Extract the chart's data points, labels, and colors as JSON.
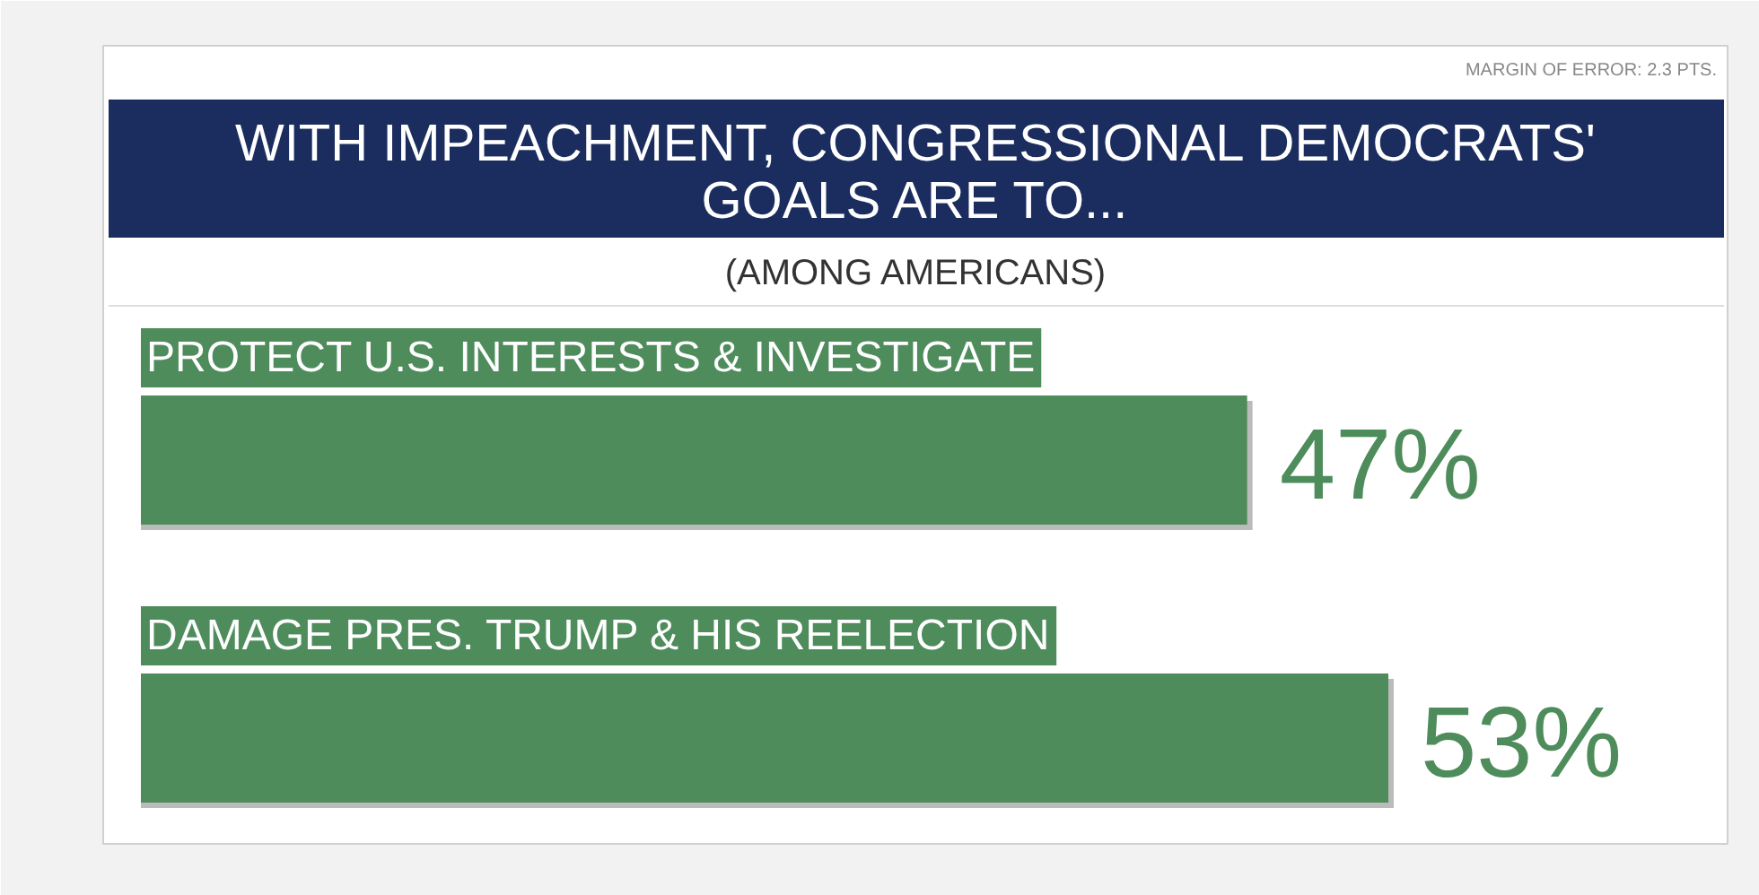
{
  "chart_data": {
    "type": "bar",
    "orientation": "horizontal",
    "title": "WITH IMPEACHMENT, CONGRESSIONAL DEMOCRATS' GOALS ARE TO...",
    "subtitle": "(AMONG AMERICANS)",
    "annotations": [
      "MARGIN OF ERROR: 2.3 PTS."
    ],
    "categories": [
      "PROTECT U.S. INTERESTS & INVESTIGATE",
      "DAMAGE PRES. TRUMP & HIS REELECTION"
    ],
    "values": [
      47,
      53
    ],
    "value_labels": [
      "47%",
      "53%"
    ],
    "color": "#4e8c5c",
    "tick_labels": false,
    "grid": false
  }
}
